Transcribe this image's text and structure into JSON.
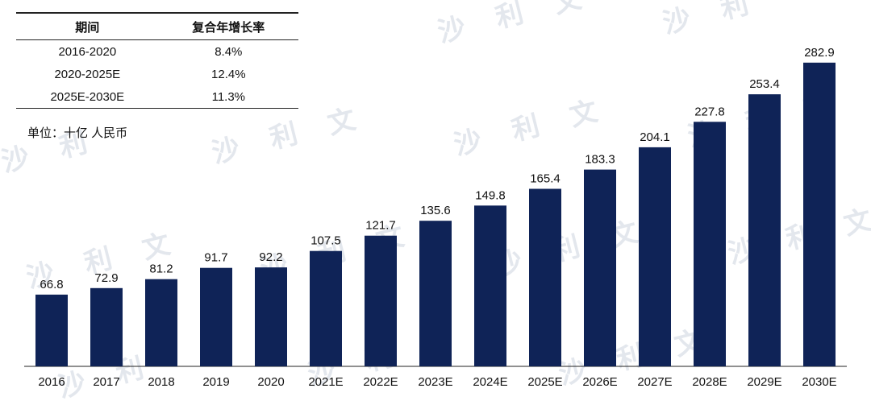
{
  "table": {
    "headers": [
      "期间",
      "复合年增长率"
    ],
    "rows": [
      [
        "2016-2020",
        "8.4%"
      ],
      [
        "2020-2025E",
        "12.4%"
      ],
      [
        "2025E-2030E",
        "11.3%"
      ]
    ]
  },
  "unit_label": "单位：十亿 人民币",
  "colors": {
    "bar": "#0f2357",
    "axis": "#222222",
    "watermark": "#d8dde6"
  },
  "chart_data": {
    "type": "bar",
    "categories": [
      "2016",
      "2017",
      "2018",
      "2019",
      "2020",
      "2021E",
      "2022E",
      "2023E",
      "2024E",
      "2025E",
      "2026E",
      "2027E",
      "2028E",
      "2029E",
      "2030E"
    ],
    "values": [
      66.8,
      72.9,
      81.2,
      91.7,
      92.2,
      107.5,
      121.7,
      135.6,
      149.8,
      165.4,
      183.3,
      204.1,
      227.8,
      253.4,
      282.9
    ],
    "value_labels": [
      "66.8",
      "72.9",
      "81.2",
      "91.7",
      "92.2",
      "107.5",
      "121.7",
      "135.6",
      "149.8",
      "165.4",
      "183.3",
      "204.1",
      "227.8",
      "253.4",
      "282.9"
    ],
    "title": "",
    "xlabel": "",
    "ylabel": "",
    "ylim": [
      0,
      300
    ],
    "grid": false,
    "legend": "none"
  }
}
